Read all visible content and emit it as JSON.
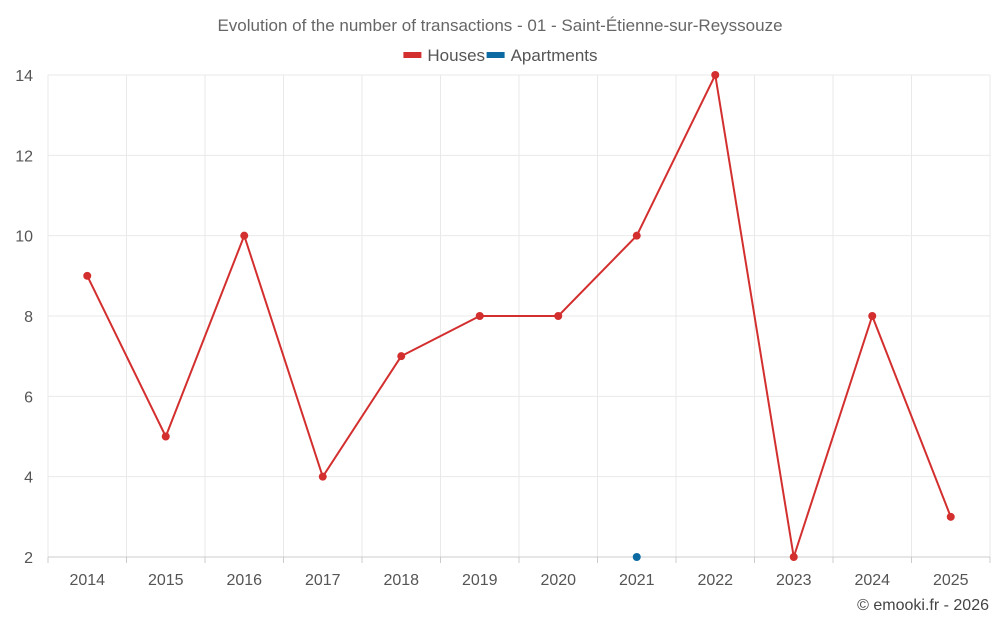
{
  "chart_data": {
    "type": "line",
    "title": "Evolution of the number of transactions - 01 - Saint-Étienne-sur-Reyssouze",
    "xlabel": "",
    "ylabel": "",
    "categories": [
      "2014",
      "2015",
      "2016",
      "2017",
      "2018",
      "2019",
      "2020",
      "2021",
      "2022",
      "2023",
      "2024",
      "2025"
    ],
    "ylim": [
      2,
      14
    ],
    "yticks": [
      2,
      4,
      6,
      8,
      10,
      12,
      14
    ],
    "grid": true,
    "legend_position": "top-center",
    "series": [
      {
        "name": "Houses",
        "color": "#d32f2f",
        "values": [
          9,
          5,
          10,
          4,
          7,
          8,
          8,
          10,
          14,
          2,
          8,
          3
        ]
      },
      {
        "name": "Apartments",
        "color": "#0b6aa2",
        "values": [
          null,
          null,
          null,
          null,
          null,
          null,
          null,
          2,
          null,
          null,
          null,
          null
        ]
      }
    ]
  },
  "credit": "© emooki.fr - 2026"
}
